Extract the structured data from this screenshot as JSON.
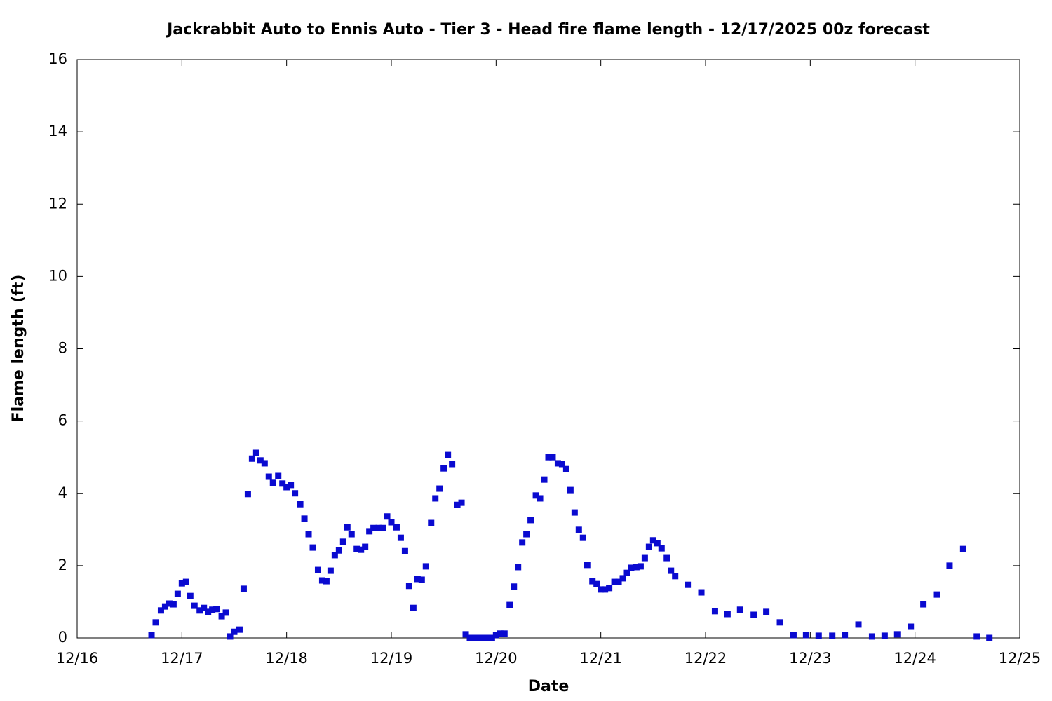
{
  "chart_data": {
    "type": "scatter",
    "title": "Jackrabbit Auto to Ennis Auto - Tier 3 - Head fire flame length - 12/17/2025 00z forecast",
    "x_label": "Date",
    "y_label": "Flame length (ft)",
    "color": "#0a0ad0",
    "xlim": [
      0,
      9
    ],
    "xticks": [
      {
        "value": 0,
        "label": "12/16"
      },
      {
        "value": 1,
        "label": "12/17"
      },
      {
        "value": 2,
        "label": "12/18"
      },
      {
        "value": 3,
        "label": "12/19"
      },
      {
        "value": 4,
        "label": "12/20"
      },
      {
        "value": 5,
        "label": "12/21"
      },
      {
        "value": 6,
        "label": "12/22"
      },
      {
        "value": 7,
        "label": "12/23"
      },
      {
        "value": 8,
        "label": "12/24"
      },
      {
        "value": 9,
        "label": "12/25"
      }
    ],
    "ylim": [
      0,
      16
    ],
    "yticks": [
      0,
      2,
      4,
      6,
      8,
      10,
      12,
      14,
      16
    ],
    "x": [
      0.71,
      0.75,
      0.8,
      0.84,
      0.88,
      0.92,
      0.96,
      1.0,
      1.04,
      1.08,
      1.12,
      1.17,
      1.21,
      1.25,
      1.29,
      1.33,
      1.38,
      1.42,
      1.46,
      1.5,
      1.55,
      1.59,
      1.63,
      1.67,
      1.71,
      1.75,
      1.79,
      1.83,
      1.87,
      1.92,
      1.96,
      2.0,
      2.04,
      2.08,
      2.13,
      2.17,
      2.21,
      2.25,
      2.3,
      2.34,
      2.38,
      2.42,
      2.46,
      2.5,
      2.54,
      2.58,
      2.62,
      2.67,
      2.71,
      2.75,
      2.79,
      2.83,
      2.88,
      2.92,
      2.96,
      3.0,
      3.05,
      3.09,
      3.13,
      3.17,
      3.21,
      3.25,
      3.29,
      3.33,
      3.38,
      3.42,
      3.46,
      3.5,
      3.54,
      3.58,
      3.63,
      3.67,
      3.71,
      3.75,
      3.79,
      3.84,
      3.88,
      3.92,
      3.96,
      4.0,
      4.04,
      4.08,
      4.13,
      4.17,
      4.21,
      4.25,
      4.29,
      4.33,
      4.38,
      4.42,
      4.46,
      4.5,
      4.54,
      4.59,
      4.63,
      4.67,
      4.71,
      4.75,
      4.79,
      4.83,
      4.87,
      4.92,
      4.96,
      5.0,
      5.04,
      5.08,
      5.13,
      5.17,
      5.21,
      5.25,
      5.29,
      5.34,
      5.38,
      5.42,
      5.46,
      5.5,
      5.54,
      5.58,
      5.63,
      5.67,
      5.71,
      5.83,
      5.96,
      6.09,
      6.21,
      6.33,
      6.46,
      6.58,
      6.71,
      6.84,
      6.96,
      7.08,
      7.21,
      7.33,
      7.46,
      7.59,
      7.71,
      7.83,
      7.96,
      8.08,
      8.21,
      8.33,
      8.46,
      8.59,
      8.71
    ],
    "values": [
      0.08,
      0.43,
      0.76,
      0.87,
      0.95,
      0.93,
      1.22,
      1.51,
      1.55,
      1.16,
      0.89,
      0.76,
      0.83,
      0.72,
      0.78,
      0.8,
      0.6,
      0.7,
      0.04,
      0.17,
      0.23,
      1.36,
      3.98,
      4.96,
      5.12,
      4.91,
      4.83,
      4.46,
      4.29,
      4.48,
      4.27,
      4.17,
      4.23,
      4.0,
      3.7,
      3.3,
      2.87,
      2.5,
      1.88,
      1.59,
      1.57,
      1.86,
      2.29,
      2.42,
      2.66,
      3.06,
      2.87,
      2.46,
      2.44,
      2.52,
      2.95,
      3.04,
      3.04,
      3.04,
      3.36,
      3.2,
      3.06,
      2.77,
      2.4,
      1.44,
      0.83,
      1.63,
      1.61,
      1.98,
      3.18,
      3.86,
      4.13,
      4.69,
      5.06,
      4.81,
      3.68,
      3.74,
      0.1,
      0,
      0,
      0,
      0,
      0,
      0,
      0.08,
      0.12,
      0.12,
      0.91,
      1.42,
      1.96,
      2.64,
      2.87,
      3.26,
      3.94,
      3.86,
      4.38,
      5.0,
      5.0,
      4.83,
      4.81,
      4.67,
      4.09,
      3.47,
      2.99,
      2.77,
      2.02,
      1.57,
      1.49,
      1.34,
      1.34,
      1.38,
      1.55,
      1.55,
      1.65,
      1.8,
      1.94,
      1.96,
      1.98,
      2.21,
      2.52,
      2.7,
      2.62,
      2.48,
      2.21,
      1.86,
      1.71,
      1.47,
      1.26,
      0.74,
      0.66,
      0.78,
      0.64,
      0.72,
      0.43,
      0.08,
      0.08,
      0.06,
      0.06,
      0.08,
      0.37,
      0.04,
      0.06,
      0.1,
      0.31,
      0.93,
      1.2,
      2.0,
      2.46,
      0.04,
      0
    ]
  }
}
